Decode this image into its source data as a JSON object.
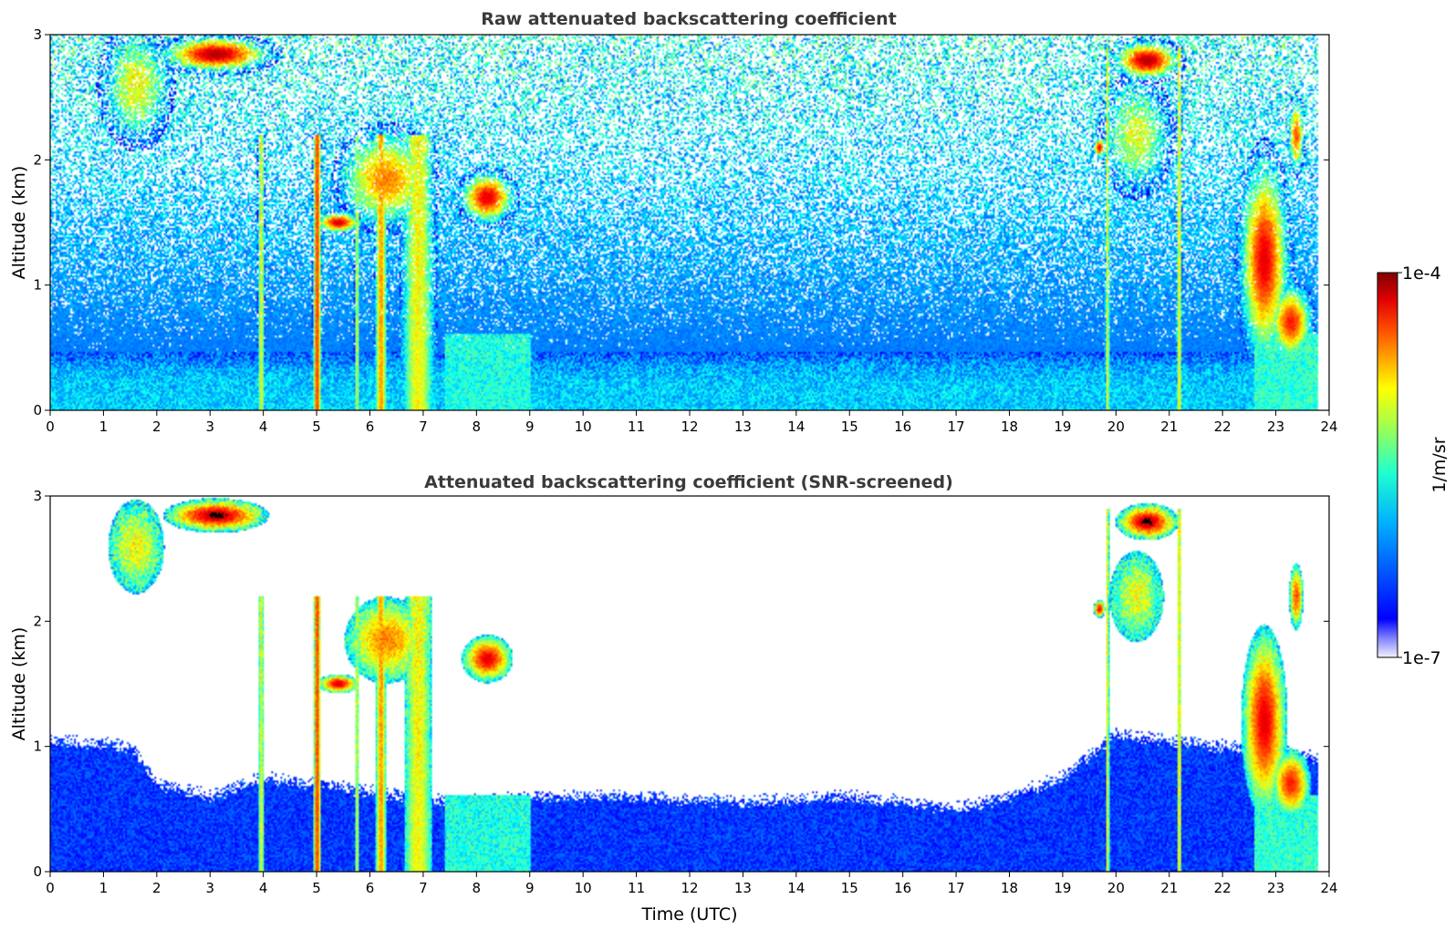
{
  "chart_data": [
    {
      "type": "heatmap",
      "title": "Raw attenuated backscattering coefficient",
      "xlabel": "",
      "ylabel": "Altitude (km)",
      "xlim": [
        0,
        24
      ],
      "ylim": [
        0,
        3
      ],
      "xticks": [
        "0",
        "1",
        "2",
        "3",
        "4",
        "5",
        "6",
        "7",
        "8",
        "9",
        "10",
        "11",
        "12",
        "13",
        "14",
        "15",
        "16",
        "17",
        "18",
        "19",
        "20",
        "21",
        "22",
        "23",
        "24"
      ],
      "yticks": [
        "0",
        "1",
        "2",
        "3"
      ],
      "screened": false,
      "features": [
        {
          "kind": "boundary_layer",
          "x_range": [
            0,
            24
          ],
          "top_km": 0.5
        },
        {
          "kind": "cloud",
          "x_range": [
            0.8,
            2.5
          ],
          "alt_range": [
            1.8,
            3.0
          ]
        },
        {
          "kind": "cloud",
          "x_range": [
            2.0,
            4.3
          ],
          "alt_range": [
            2.6,
            3.0
          ]
        },
        {
          "kind": "precip_column",
          "x_range": [
            3.9,
            4.0
          ],
          "alt_range": [
            0,
            3.0
          ]
        },
        {
          "kind": "precip_column",
          "x_range": [
            4.9,
            5.1
          ],
          "alt_range": [
            0,
            2.1
          ]
        },
        {
          "kind": "cloud",
          "x_range": [
            4.8,
            7.4
          ],
          "alt_range": [
            1.4,
            2.5
          ]
        },
        {
          "kind": "precip_column",
          "x_range": [
            5.7,
            7.4
          ],
          "alt_range": [
            0,
            1.5
          ]
        },
        {
          "kind": "cloud",
          "x_range": [
            7.4,
            8.8
          ],
          "alt_range": [
            1.5,
            2.1
          ]
        },
        {
          "kind": "cloud",
          "x_range": [
            19.3,
            21.4
          ],
          "alt_range": [
            1.7,
            3.0
          ]
        },
        {
          "kind": "precip_column",
          "x_range": [
            19.8,
            19.9
          ],
          "alt_range": [
            0,
            2.1
          ]
        },
        {
          "kind": "precip_column",
          "x_range": [
            21.1,
            21.3
          ],
          "alt_range": [
            0,
            3.0
          ]
        },
        {
          "kind": "cloud",
          "x_range": [
            22.1,
            23.8
          ],
          "alt_range": [
            0.2,
            2.4
          ]
        }
      ]
    },
    {
      "type": "heatmap",
      "title": "Attenuated backscattering coefficient (SNR-screened)",
      "xlabel": "Time (UTC)",
      "ylabel": "Altitude (km)",
      "xlim": [
        0,
        24
      ],
      "ylim": [
        0,
        3
      ],
      "xticks": [
        "0",
        "1",
        "2",
        "3",
        "4",
        "5",
        "6",
        "7",
        "8",
        "9",
        "10",
        "11",
        "12",
        "13",
        "14",
        "15",
        "16",
        "17",
        "18",
        "19",
        "20",
        "21",
        "22",
        "23",
        "24"
      ],
      "yticks": [
        "0",
        "1",
        "2",
        "3"
      ],
      "screened": true,
      "boundary_layer_top_km": [
        [
          0,
          1.05
        ],
        [
          1.5,
          1.0
        ],
        [
          2,
          0.7
        ],
        [
          3,
          0.6
        ],
        [
          4,
          0.75
        ],
        [
          5,
          0.7
        ],
        [
          7.5,
          0.55
        ],
        [
          9,
          0.6
        ],
        [
          11,
          0.6
        ],
        [
          13,
          0.55
        ],
        [
          15,
          0.6
        ],
        [
          17,
          0.5
        ],
        [
          18,
          0.6
        ],
        [
          19,
          0.75
        ],
        [
          20,
          1.1
        ],
        [
          22,
          1.0
        ],
        [
          24,
          0.9
        ]
      ]
    }
  ],
  "colorbar": {
    "label": "1/m/sr",
    "max_label": "1e-4",
    "min_label": "1e-7",
    "colormap": "jet",
    "scale": "log",
    "range": [
      1e-07,
      0.0001
    ]
  },
  "colors": {
    "low": "#ffffff",
    "blue": "#0000ff",
    "cyan": "#00ffff",
    "yellow": "#ffff00",
    "red": "#ff0000",
    "dark_red": "#800000",
    "screened_peak": "#000000"
  }
}
